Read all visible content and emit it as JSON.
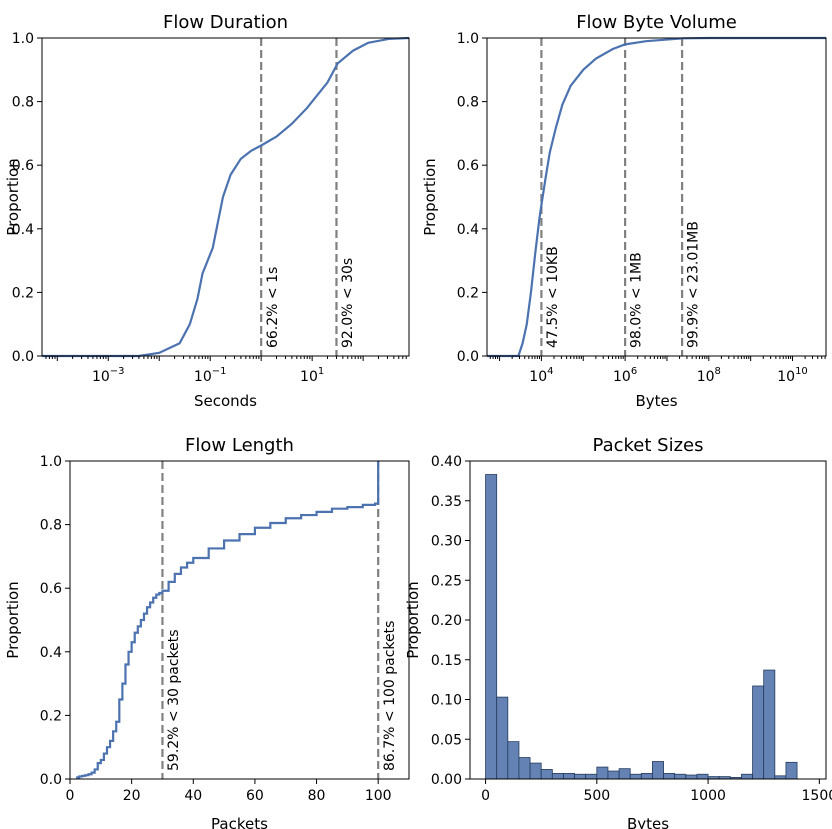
{
  "chart_data": [
    {
      "id": "flow-duration",
      "type": "line",
      "title": "Flow Duration",
      "xlabel": "Seconds",
      "ylabel": "Proportion",
      "xscale": "log",
      "xlim_log10": [
        -4.3,
        2.9
      ],
      "ylim": [
        0,
        1.0
      ],
      "x_tick_values_log10": [
        -3,
        -1,
        1
      ],
      "x_tick_labels": [
        {
          "base": "10",
          "exp": "−3"
        },
        {
          "base": "10",
          "exp": "−1"
        },
        {
          "base": "10",
          "exp": "1"
        }
      ],
      "y_ticks": [
        0.0,
        0.2,
        0.4,
        0.6,
        0.8,
        1.0
      ],
      "y_tick_labels": [
        "0.0",
        "0.2",
        "0.4",
        "0.6",
        "0.8",
        "1.0"
      ],
      "series": [
        {
          "x_log10": [
            -4.3,
            -2.4,
            -2.0,
            -1.6,
            -1.4,
            -1.25,
            -1.15,
            -1.05,
            -0.95,
            -0.85,
            -0.75,
            -0.6,
            -0.4,
            -0.2,
            0.0,
            0.3,
            0.6,
            0.9,
            1.1,
            1.3,
            1.5,
            1.8,
            2.1,
            2.5,
            2.9
          ],
          "y": [
            0.0,
            0.0,
            0.01,
            0.04,
            0.1,
            0.18,
            0.26,
            0.3,
            0.34,
            0.42,
            0.5,
            0.57,
            0.62,
            0.645,
            0.662,
            0.69,
            0.73,
            0.78,
            0.82,
            0.86,
            0.92,
            0.96,
            0.985,
            0.997,
            1.0
          ]
        }
      ],
      "vlines": [
        {
          "x_log10": 0.0,
          "label": "66.2% < 1s"
        },
        {
          "x_log10": 1.477,
          "label": "92.0% < 30s"
        }
      ]
    },
    {
      "id": "flow-byte-volume",
      "type": "line",
      "title": "Flow Byte Volume",
      "xlabel": "Bytes",
      "ylabel": "Proportion",
      "xscale": "log",
      "xlim_log10": [
        2.7,
        10.8
      ],
      "ylim": [
        0,
        1.0
      ],
      "x_tick_values_log10": [
        4,
        6,
        8,
        10
      ],
      "x_tick_labels": [
        {
          "base": "10",
          "exp": "4"
        },
        {
          "base": "10",
          "exp": "6"
        },
        {
          "base": "10",
          "exp": "8"
        },
        {
          "base": "10",
          "exp": "10"
        }
      ],
      "y_ticks": [
        0.0,
        0.2,
        0.4,
        0.6,
        0.8,
        1.0
      ],
      "y_tick_labels": [
        "0.0",
        "0.2",
        "0.4",
        "0.6",
        "0.8",
        "1.0"
      ],
      "series": [
        {
          "x_log10": [
            2.7,
            3.45,
            3.55,
            3.65,
            3.75,
            3.85,
            3.95,
            4.0,
            4.1,
            4.2,
            4.35,
            4.5,
            4.7,
            5.0,
            5.3,
            5.7,
            6.0,
            6.5,
            7.0,
            7.4,
            8.0,
            9.0,
            10.8
          ],
          "y": [
            0.0,
            0.0,
            0.04,
            0.1,
            0.2,
            0.32,
            0.43,
            0.475,
            0.56,
            0.64,
            0.72,
            0.79,
            0.85,
            0.9,
            0.935,
            0.965,
            0.98,
            0.99,
            0.995,
            0.999,
            1.0,
            1.0,
            1.0
          ]
        }
      ],
      "vlines": [
        {
          "x_log10": 4.0,
          "label": "47.5% < 10KB"
        },
        {
          "x_log10": 6.0,
          "label": "98.0% < 1MB"
        },
        {
          "x_log10": 7.362,
          "label": "99.9% < 23.01MB"
        }
      ]
    },
    {
      "id": "flow-length",
      "type": "line",
      "title": "Flow Length",
      "xlabel": "Packets",
      "ylabel": "Proportion",
      "xlim": [
        0,
        110
      ],
      "ylim": [
        0,
        1.0
      ],
      "x_ticks": [
        0,
        20,
        40,
        60,
        80,
        100
      ],
      "x_tick_labels": [
        "0",
        "20",
        "40",
        "60",
        "80",
        "100"
      ],
      "y_ticks": [
        0.0,
        0.2,
        0.4,
        0.6,
        0.8,
        1.0
      ],
      "y_tick_labels": [
        "0.0",
        "0.2",
        "0.4",
        "0.6",
        "0.8",
        "1.0"
      ],
      "series": [
        {
          "x": [
            2,
            3,
            4,
            5,
            6,
            7,
            8,
            9,
            10,
            11,
            12,
            13,
            14,
            15,
            16,
            17,
            18,
            19,
            20,
            21,
            22,
            23,
            24,
            25,
            26,
            27,
            28,
            29,
            30,
            32,
            34,
            36,
            38,
            40,
            45,
            50,
            55,
            60,
            65,
            70,
            75,
            80,
            85,
            90,
            95,
            99,
            100
          ],
          "y": [
            0.005,
            0.008,
            0.01,
            0.012,
            0.015,
            0.02,
            0.03,
            0.05,
            0.06,
            0.08,
            0.1,
            0.12,
            0.15,
            0.18,
            0.25,
            0.3,
            0.36,
            0.4,
            0.43,
            0.46,
            0.48,
            0.5,
            0.52,
            0.54,
            0.555,
            0.57,
            0.58,
            0.585,
            0.592,
            0.62,
            0.645,
            0.665,
            0.68,
            0.695,
            0.725,
            0.75,
            0.77,
            0.79,
            0.805,
            0.82,
            0.83,
            0.84,
            0.85,
            0.855,
            0.862,
            0.866,
            0.867
          ]
        }
      ],
      "vlines": [
        {
          "x": 30,
          "label": "59.2% < 30 packets"
        },
        {
          "x": 100,
          "label": "86.7% < 100 packets"
        }
      ]
    },
    {
      "id": "packet-sizes",
      "type": "bar",
      "title": "Packet Sizes",
      "xlabel": "Bytes",
      "ylabel": "Proportion",
      "xlim": [
        -70,
        1530
      ],
      "ylim": [
        0,
        0.4
      ],
      "x_ticks": [
        0,
        500,
        1000,
        1500
      ],
      "x_tick_labels": [
        "0",
        "500",
        "1000",
        "1500"
      ],
      "y_ticks": [
        0.0,
        0.05,
        0.1,
        0.15,
        0.2,
        0.25,
        0.3,
        0.35,
        0.4
      ],
      "y_tick_labels": [
        "0.00",
        "0.05",
        "0.10",
        "0.15",
        "0.20",
        "0.25",
        "0.30",
        "0.35",
        "0.40"
      ],
      "bin_width": 50,
      "bin_starts": [
        0,
        50,
        100,
        150,
        200,
        250,
        300,
        350,
        400,
        450,
        500,
        550,
        600,
        650,
        700,
        750,
        800,
        850,
        900,
        950,
        1000,
        1050,
        1100,
        1150,
        1200,
        1250,
        1300,
        1350
      ],
      "values": [
        0.383,
        0.103,
        0.047,
        0.027,
        0.02,
        0.012,
        0.007,
        0.007,
        0.006,
        0.006,
        0.015,
        0.01,
        0.013,
        0.006,
        0.007,
        0.022,
        0.007,
        0.006,
        0.005,
        0.006,
        0.003,
        0.003,
        0.002,
        0.006,
        0.117,
        0.137,
        0.004,
        0.021
      ]
    }
  ]
}
